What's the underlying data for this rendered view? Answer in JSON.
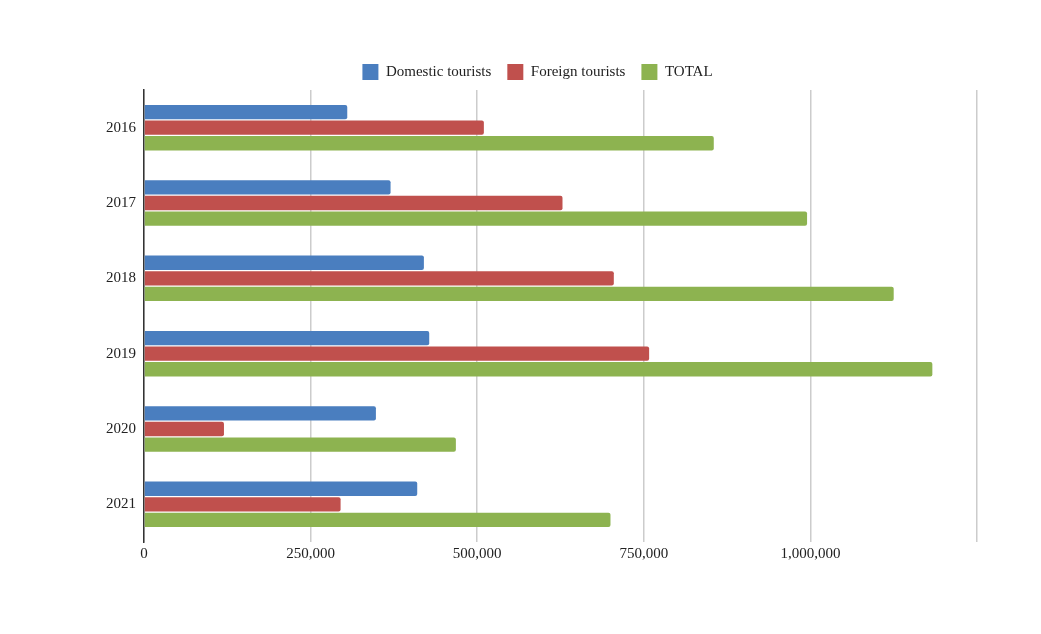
{
  "chart_data": {
    "type": "bar",
    "orientation": "horizontal",
    "categories": [
      "2016",
      "2017",
      "2018",
      "2019",
      "2020",
      "2021"
    ],
    "series": [
      {
        "name": "Domestic tourists",
        "color": "#4a7ebf",
        "values": [
          305000,
          370000,
          420000,
          428000,
          348000,
          410000
        ]
      },
      {
        "name": "Foreign tourists",
        "color": "#c0504d",
        "values": [
          510000,
          628000,
          705000,
          758000,
          120000,
          295000
        ]
      },
      {
        "name": "TOTAL",
        "color": "#8db350",
        "values": [
          855000,
          995000,
          1125000,
          1183000,
          468000,
          700000
        ]
      }
    ],
    "xlim": [
      0,
      1250000
    ],
    "xticks": [
      0,
      {
        "value": 250000,
        "label": "250,000"
      },
      {
        "value": 500000,
        "label": "500,000"
      },
      {
        "value": 750000,
        "label": "750,000"
      },
      {
        "value": 1000000,
        "label": "1,000,000"
      },
      {
        "value": 1250000,
        "label": null
      }
    ],
    "grid": "x",
    "legend": "top"
  }
}
